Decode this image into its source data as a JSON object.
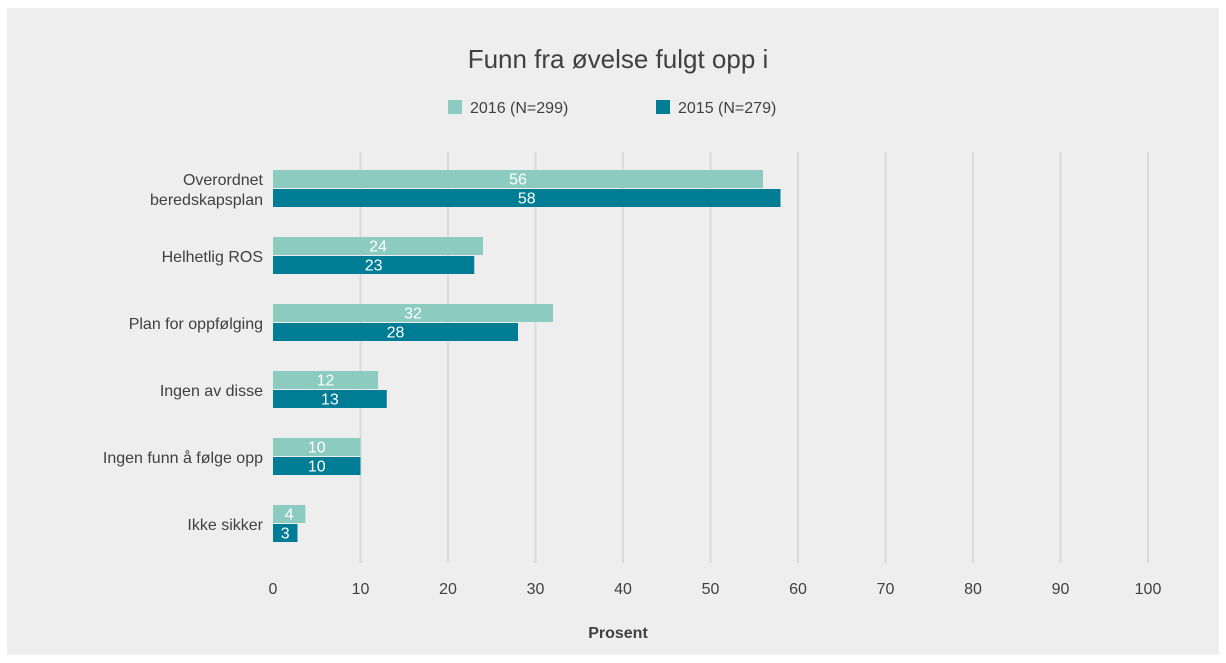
{
  "chart_data": {
    "type": "bar",
    "orientation": "horizontal",
    "title": "Funn fra øvelse fulgt opp i",
    "xlabel": "Prosent",
    "ylabel": "",
    "xlim": [
      0,
      100
    ],
    "x_ticks": [
      0,
      10,
      20,
      30,
      40,
      50,
      60,
      70,
      80,
      90,
      100
    ],
    "categories": [
      [
        "Overordnet",
        "beredskapsplan"
      ],
      [
        "Helhetlig ROS"
      ],
      [
        "Plan for oppfølging"
      ],
      [
        "Ingen av disse"
      ],
      [
        "Ingen funn å følge opp"
      ],
      [
        "Ikke sikker"
      ]
    ],
    "series": [
      {
        "name": "2016 (N=299)",
        "color": "#8ccbbf",
        "values": [
          56,
          24,
          32,
          12,
          10,
          4
        ],
        "plotted_values": [
          56,
          24,
          32,
          12,
          10,
          3.7
        ]
      },
      {
        "name": "2015 (N=279)",
        "color": "#007d95",
        "values": [
          58,
          23,
          28,
          13,
          10,
          3
        ],
        "plotted_values": [
          58,
          23,
          28,
          13,
          10,
          2.8
        ]
      }
    ],
    "grid": true,
    "legend_position": "top-center",
    "data_labels": true
  }
}
